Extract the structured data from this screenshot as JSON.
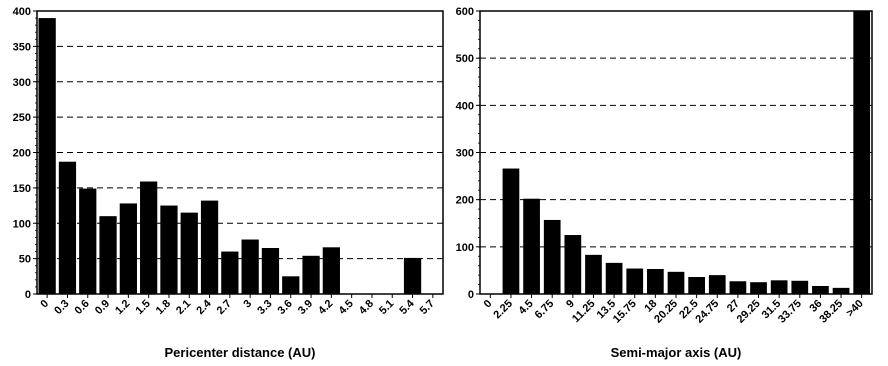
{
  "chart_data": [
    {
      "type": "bar",
      "xlabel": "Pericenter distance (AU)",
      "ylabel": "",
      "ylim": [
        0,
        400
      ],
      "yticks": [
        0,
        50,
        100,
        150,
        200,
        250,
        300,
        350,
        400
      ],
      "grid": "dashed horizontal",
      "categories": [
        "0",
        "0.3",
        "0.6",
        "0.9",
        "1.2",
        "1.5",
        "1.8",
        "2.1",
        "2.4",
        "2.7",
        "3",
        "3.3",
        "3.6",
        "3.9",
        "4.2",
        "4.5",
        "4.8",
        "5.1",
        "5.4",
        "5.7"
      ],
      "values": [
        390,
        187,
        149,
        110,
        128,
        159,
        125,
        115,
        132,
        60,
        77,
        65,
        25,
        54,
        66,
        0,
        0,
        0,
        51,
        0
      ]
    },
    {
      "type": "bar",
      "xlabel": "Semi-major axis (AU)",
      "ylabel": "",
      "ylim": [
        0,
        600
      ],
      "yticks": [
        0,
        100,
        200,
        300,
        400,
        500,
        600
      ],
      "grid": "dashed horizontal",
      "categories": [
        "0",
        "2.25",
        "4.5",
        "6.75",
        "9",
        "11.25",
        "13.5",
        "15.75",
        "18",
        "20.25",
        "22.5",
        "24.75",
        "27",
        "29.25",
        "31.5",
        "33.75",
        "36",
        "38.25",
        ">40"
      ],
      "values": [
        0,
        266,
        202,
        157,
        125,
        83,
        66,
        54,
        53,
        47,
        36,
        40,
        27,
        25,
        29,
        28,
        17,
        13,
        600
      ]
    }
  ]
}
